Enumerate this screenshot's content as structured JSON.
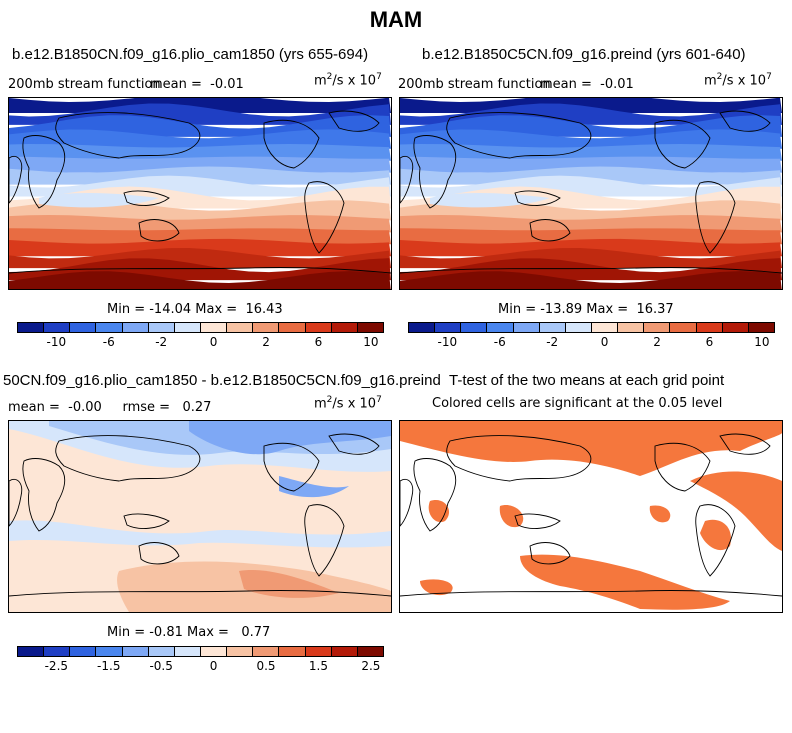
{
  "figure": {
    "title": "MAM"
  },
  "panels": {
    "top_left": {
      "title": "b.e12.B1850CN.f09_g16.plio_cam1850 (yrs 655-694)",
      "variable": "200mb stream function",
      "mean_label": "mean =",
      "mean_value": "-0.01",
      "units_main": "m",
      "units_sup1": "2",
      "units_mid": "/s x 10",
      "units_sup2": "7",
      "min_label": "Min =",
      "min_value": "-14.04",
      "max_label": "Max =",
      "max_value": "16.43"
    },
    "top_right": {
      "title": "b.e12.B1850C5CN.f09_g16.preind (yrs 601-640)",
      "variable": "200mb stream function",
      "mean_label": "mean =",
      "mean_value": "-0.01",
      "units_main": "m",
      "units_sup1": "2",
      "units_mid": "/s x 10",
      "units_sup2": "7",
      "min_label": "Min =",
      "min_value": "-13.89",
      "max_label": "Max =",
      "max_value": "16.37"
    },
    "bottom_left": {
      "title": "50CN.f09_g16.plio_cam1850 - b.e12.B1850C5CN.f09_g16.preind",
      "mean_label": "mean =",
      "mean_value": "-0.00",
      "rmse_label": "rmse =",
      "rmse_value": "0.27",
      "units_main": "m",
      "units_sup1": "2",
      "units_mid": "/s x 10",
      "units_sup2": "7",
      "min_label": "Min =",
      "min_value": "-0.81",
      "max_label": "Max =",
      "max_value": "0.77"
    },
    "bottom_right": {
      "title": "T-test of the two means at each grid point",
      "subtitle": "Colored cells are significant at the 0.05 level"
    }
  },
  "colorbars": {
    "full_ticks": [
      "-10",
      "-6",
      "-2",
      "0",
      "2",
      "6",
      "10"
    ],
    "diff_ticks": [
      "-2.5",
      "-1.5",
      "-0.5",
      "0",
      "0.5",
      "1.5",
      "2.5"
    ],
    "colors": [
      "#0a1a8c",
      "#1f3fc4",
      "#2f63e0",
      "#4a86ee",
      "#7ea8f5",
      "#a9c8f8",
      "#d6e6fb",
      "#fde6d6",
      "#f7c3a4",
      "#f09a74",
      "#e86c42",
      "#d93a1b",
      "#b31a08",
      "#7d0a00"
    ]
  },
  "colors": {
    "significant": "#f5773d"
  }
}
